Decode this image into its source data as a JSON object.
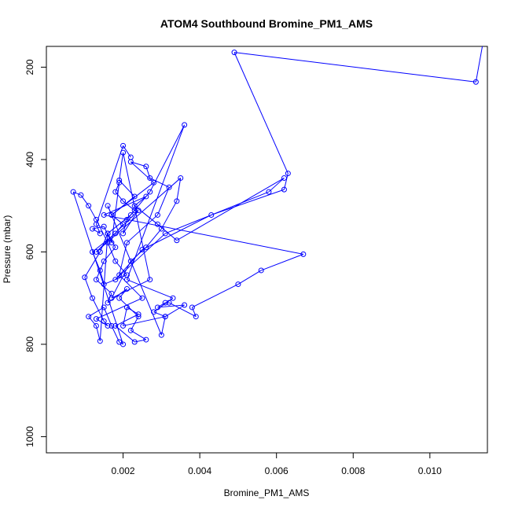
{
  "chart_data": {
    "type": "line",
    "title": "ATOM4 Southbound Bromine_PM1_AMS",
    "xlabel": "Bromine_PM1_AMS",
    "ylabel": "Pressure (mbar)",
    "xlim": [
      0.0,
      0.0115
    ],
    "ylim": [
      1035,
      155
    ],
    "y_inverted": true,
    "x_ticks": [
      0.002,
      0.004,
      0.006,
      0.008,
      0.01
    ],
    "x_tick_labels": [
      "0.002",
      "0.004",
      "0.006",
      "0.008",
      "0.010"
    ],
    "y_ticks": [
      200,
      400,
      600,
      800,
      1000
    ],
    "y_tick_labels": [
      "200",
      "400",
      "600",
      "800",
      "1000"
    ],
    "grid": false,
    "marker": "open-circle",
    "line_color": "#0000ff",
    "marker_color": "#0000ff",
    "series": [
      {
        "label": "",
        "x": [
          0.0114,
          0.0112,
          0.0049,
          0.0063,
          0.0062,
          0.0043,
          0.0025,
          0.0018,
          0.0031,
          0.0058,
          0.0062,
          0.0034,
          0.0029,
          0.0023,
          0.0026,
          0.0015,
          0.0067,
          0.0056,
          0.005,
          0.0038,
          0.0039,
          0.0032,
          0.0031,
          0.0029,
          0.0036,
          0.0031,
          0.0028,
          0.0033,
          0.0021,
          0.0036,
          0.0027,
          0.0021,
          0.002,
          0.0024,
          0.0013,
          0.0035,
          0.0034,
          0.003,
          0.0026,
          0.0022,
          0.0017,
          0.0027,
          0.002,
          0.0019,
          0.0023,
          0.0017,
          0.0028,
          0.0022,
          0.0026,
          0.0027,
          0.0032,
          0.0029,
          0.0021,
          0.0019,
          0.0025,
          0.0013,
          0.0016,
          0.0015,
          0.0012,
          0.001,
          0.0014,
          0.0016,
          0.0014,
          0.0013,
          0.0011,
          0.0015,
          0.0017,
          0.0019,
          0.002,
          0.0007,
          0.0009,
          0.0011,
          0.0013,
          0.0016,
          0.0018,
          0.0021,
          0.0015,
          0.0014,
          0.0012,
          0.0018,
          0.002,
          0.0017,
          0.0016,
          0.003,
          0.0031,
          0.002,
          0.0021,
          0.0024,
          0.0018,
          0.0023,
          0.0026,
          0.0022,
          0.0024,
          0.0019,
          0.0021,
          0.0016,
          0.0017,
          0.0013,
          0.0015,
          0.0018,
          0.0016,
          0.0022,
          0.0023,
          0.002,
          0.0018,
          0.0019,
          0.0017,
          0.0015,
          0.0012,
          0.0014,
          0.0013,
          0.002,
          0.0022
        ],
        "y": [
          140,
          232,
          168,
          430,
          465,
          520,
          595,
          660,
          560,
          470,
          440,
          575,
          540,
          500,
          480,
          520,
          605,
          640,
          670,
          720,
          740,
          710,
          710,
          720,
          715,
          740,
          730,
          700,
          660,
          325,
          470,
          530,
          560,
          510,
          600,
          440,
          490,
          550,
          590,
          620,
          700,
          660,
          385,
          445,
          480,
          520,
          450,
          405,
          415,
          440,
          460,
          520,
          580,
          650,
          700,
          745,
          760,
          750,
          700,
          655,
          600,
          560,
          793,
          760,
          740,
          720,
          760,
          795,
          800,
          470,
          477,
          500,
          530,
          580,
          620,
          650,
          670,
          640,
          600,
          560,
          540,
          520,
          500,
          780,
          740,
          760,
          720,
          735,
          760,
          795,
          790,
          770,
          740,
          700,
          680,
          710,
          690,
          660,
          620,
          590,
          560,
          520,
          510,
          490,
          470,
          450,
          580,
          545,
          550,
          560,
          540,
          370,
          395
        ]
      }
    ]
  }
}
